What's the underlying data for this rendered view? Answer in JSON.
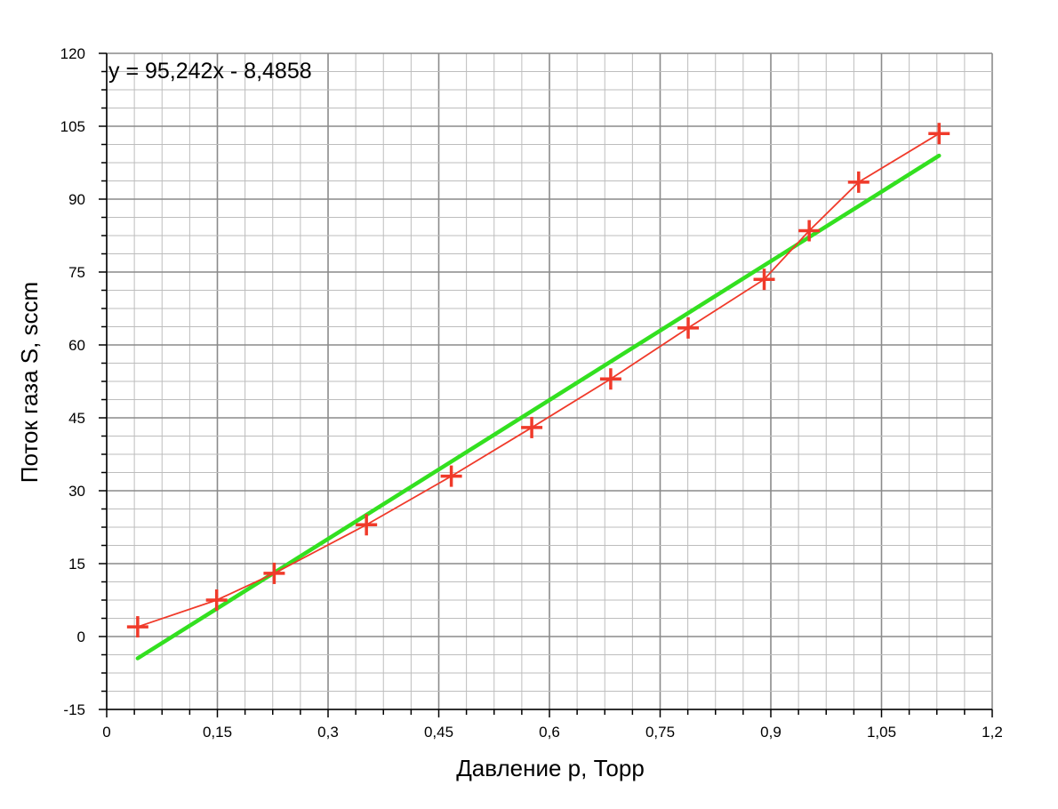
{
  "chart_data": {
    "type": "scatter",
    "xlabel": "Давление р, Торр",
    "ylabel": "Поток газа S, sccm",
    "xlim": [
      0,
      1.2
    ],
    "ylim": [
      -15,
      120
    ],
    "x_ticks": [
      "0",
      "0,15",
      "0,3",
      "0,45",
      "0,6",
      "0,75",
      "0,9",
      "1,05",
      "1,2"
    ],
    "y_ticks": [
      "-15",
      "0",
      "15",
      "30",
      "45",
      "60",
      "75",
      "90",
      "105",
      "120"
    ],
    "x_tick_values": [
      0,
      0.15,
      0.3,
      0.45,
      0.6,
      0.75,
      0.9,
      1.05,
      1.2
    ],
    "y_tick_values": [
      -15,
      0,
      15,
      30,
      45,
      60,
      75,
      90,
      105,
      120
    ],
    "grid": true,
    "series": [
      {
        "color": "#f03a2a",
        "marker": "plus",
        "x": [
          0.042,
          0.149,
          0.227,
          0.352,
          0.467,
          0.576,
          0.683,
          0.788,
          0.891,
          0.952,
          1.019,
          1.128
        ],
        "y": [
          2,
          7.5,
          13,
          23,
          33,
          43,
          53,
          63.5,
          73.5,
          83.5,
          93.5,
          103.5
        ]
      }
    ],
    "trendline": {
      "color": "#33e020",
      "slope": 95.242,
      "intercept": -8.4858,
      "x_range": [
        0.042,
        1.128
      ],
      "equation_label": "y = 95,242x - 8,4858"
    }
  }
}
